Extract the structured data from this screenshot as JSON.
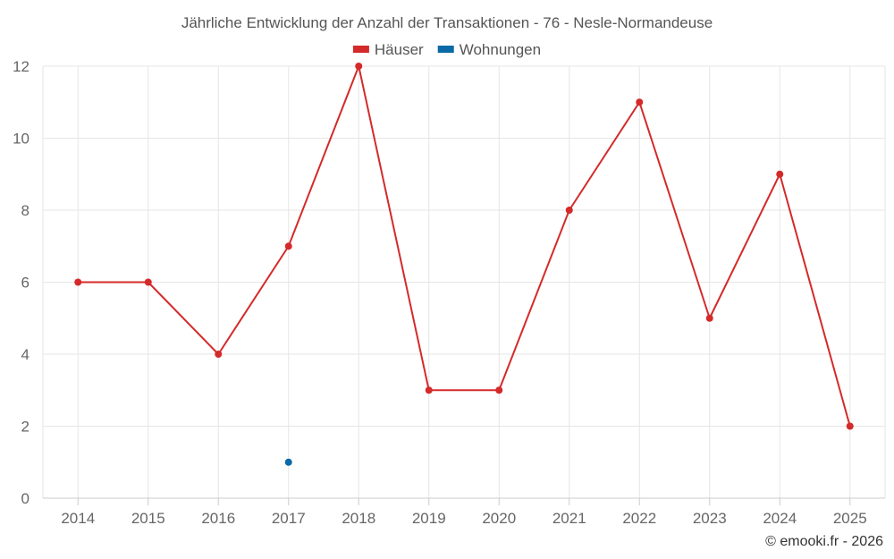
{
  "chart_data": {
    "type": "line",
    "title": "Jährliche Entwicklung der Anzahl der Transaktionen - 76 - Nesle-Normandeuse",
    "xlabel": "",
    "ylabel": "",
    "categories": [
      "2014",
      "2015",
      "2016",
      "2017",
      "2018",
      "2019",
      "2020",
      "2021",
      "2022",
      "2023",
      "2024",
      "2025"
    ],
    "ylim": [
      0,
      12
    ],
    "yticks": [
      0,
      2,
      4,
      6,
      8,
      10,
      12
    ],
    "grid": true,
    "legend_position": "top-center",
    "series": [
      {
        "name": "Häuser",
        "color": "#d42a2a",
        "values": [
          6,
          6,
          4,
          7,
          12,
          3,
          3,
          8,
          11,
          5,
          9,
          2
        ]
      },
      {
        "name": "Wohnungen",
        "color": "#0a6aa6",
        "values": [
          null,
          null,
          null,
          1,
          null,
          null,
          null,
          null,
          null,
          null,
          null,
          null
        ]
      }
    ]
  },
  "credit": "© emooki.fr - 2026"
}
